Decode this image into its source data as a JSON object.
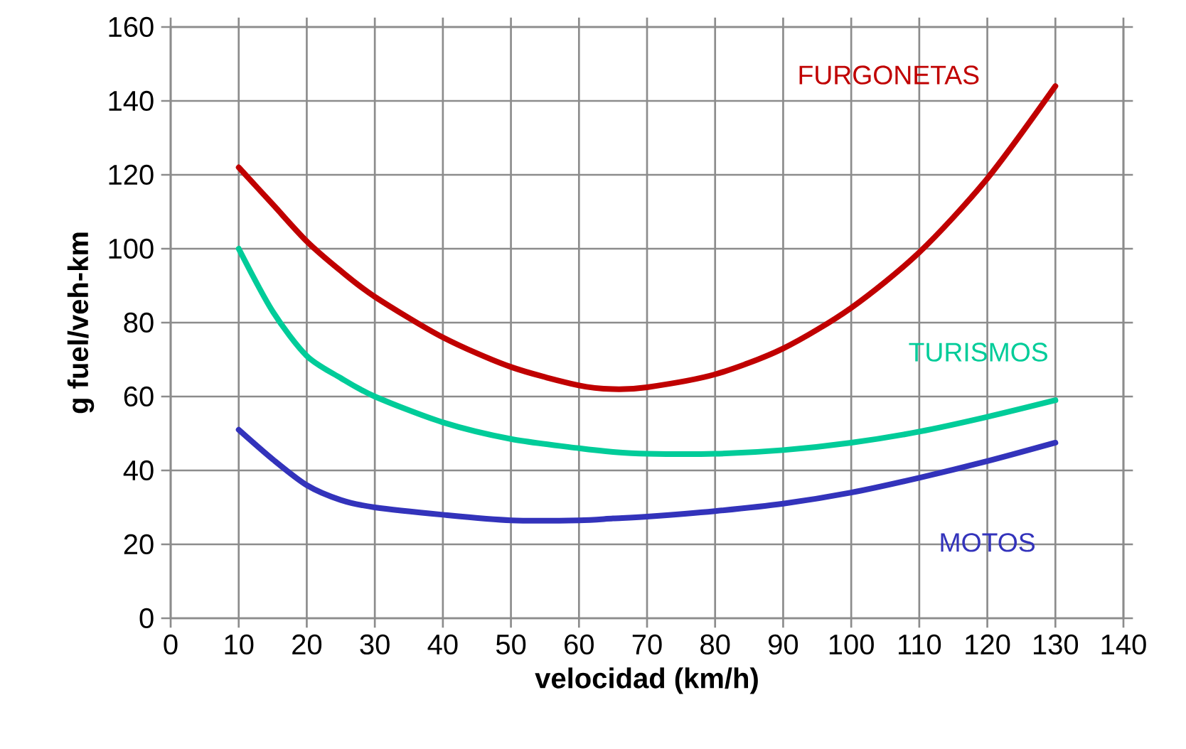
{
  "chart_data": {
    "type": "line",
    "xlabel": "velocidad (km/h)",
    "ylabel": "g fuel/veh-km",
    "x": [
      10,
      15,
      20,
      25,
      30,
      40,
      50,
      60,
      65,
      70,
      80,
      90,
      100,
      110,
      120,
      130
    ],
    "xlim": [
      0,
      140
    ],
    "xticks": [
      0,
      10,
      20,
      30,
      40,
      50,
      60,
      70,
      80,
      90,
      100,
      110,
      120,
      130,
      140
    ],
    "ylim": [
      0,
      160
    ],
    "yticks": [
      0,
      20,
      40,
      60,
      80,
      100,
      120,
      140,
      160
    ],
    "grid": true,
    "legend": false,
    "marker": "none",
    "line_style": "solid",
    "series": [
      {
        "name": "FURGONETAS",
        "color": "#c00000",
        "values": [
          122,
          112,
          102,
          94,
          87,
          76,
          68,
          63,
          62,
          62.5,
          66,
          73,
          84,
          99,
          119,
          144
        ]
      },
      {
        "name": "TURISMOS",
        "color": "#00cc99",
        "values": [
          100,
          83,
          71,
          65,
          60,
          53,
          48.5,
          46,
          45,
          44.5,
          44.5,
          45.5,
          47.5,
          50.5,
          54.5,
          59
        ]
      },
      {
        "name": "MOTOS",
        "color": "#3333bb",
        "values": [
          51,
          43,
          36,
          32,
          30,
          28,
          26.5,
          26.5,
          27,
          27.5,
          29,
          31,
          34,
          38,
          42.5,
          47.5
        ]
      }
    ]
  }
}
